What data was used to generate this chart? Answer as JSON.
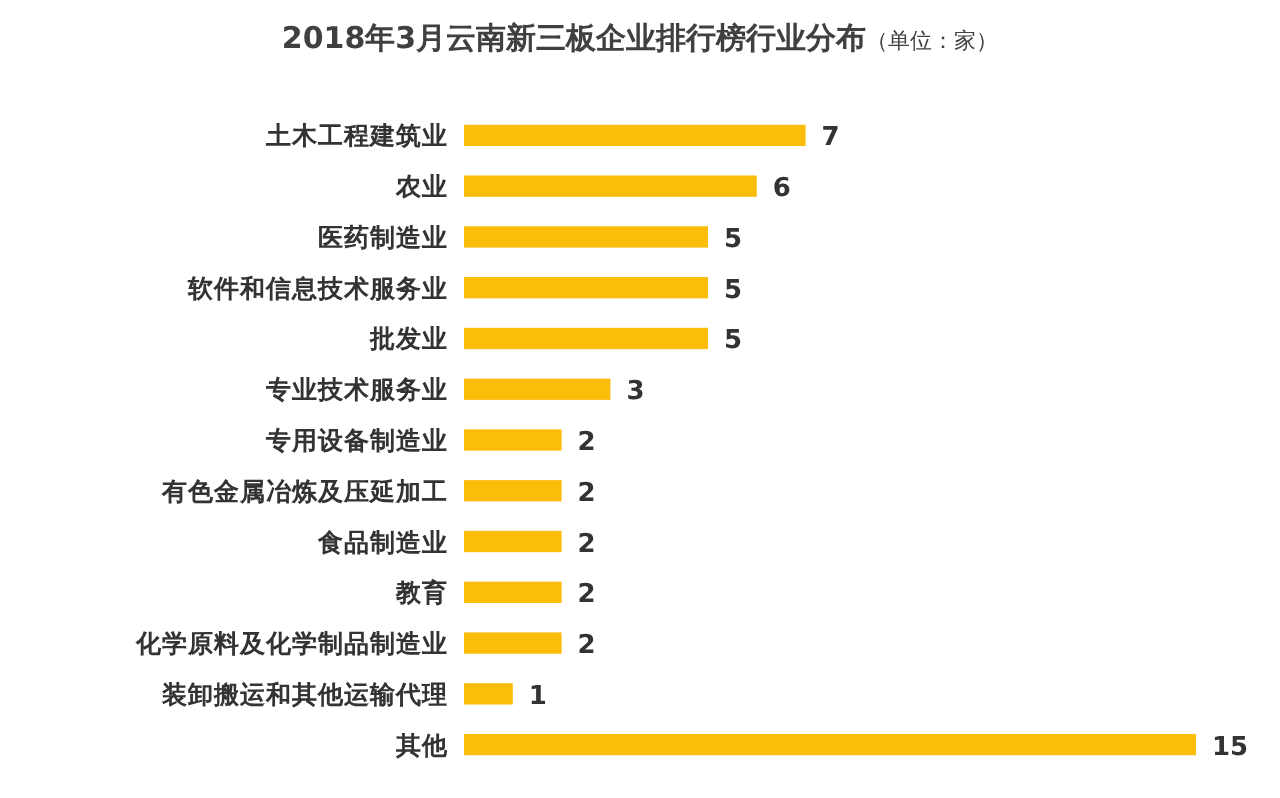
{
  "chart_data": {
    "type": "bar",
    "orientation": "horizontal",
    "title": "2018年3月云南新三板企业排行榜行业分布",
    "subtitle": "（单位：家）",
    "categories": [
      "土木工程建筑业",
      "农业",
      "医药制造业",
      "软件和信息技术服务业",
      "批发业",
      "专业技术服务业",
      "专用设备制造业",
      "有色金属冶炼及压延加工",
      "食品制造业",
      "教育",
      "化学原料及化学制品制造业",
      "装卸搬运和其他运输代理",
      "其他"
    ],
    "values": [
      7,
      6,
      5,
      5,
      5,
      3,
      2,
      2,
      2,
      2,
      2,
      1,
      15
    ],
    "color": "#fcbd0a",
    "data_labels": true
  }
}
